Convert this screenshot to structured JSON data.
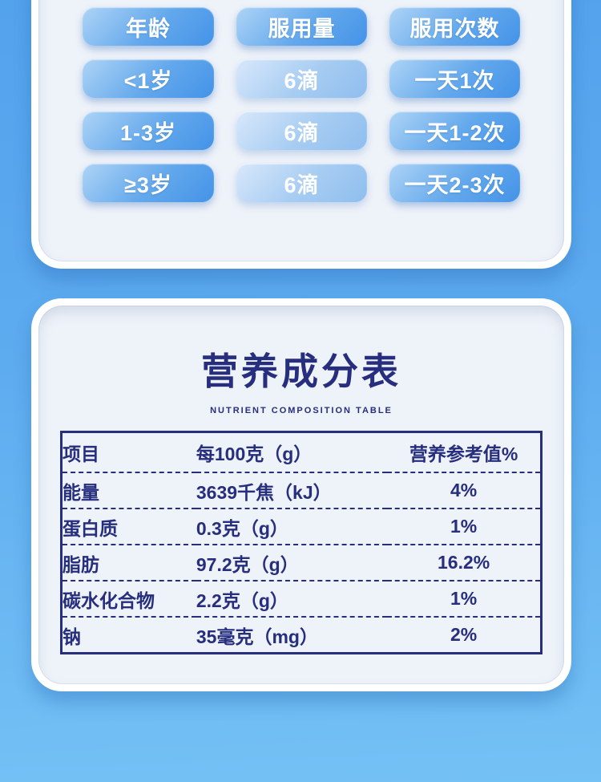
{
  "dosage_table": {
    "headers": [
      "年龄",
      "服用量",
      "服用次数"
    ],
    "rows": [
      [
        "<1岁",
        "6滴",
        "一天1次"
      ],
      [
        "1-3岁",
        "6滴",
        "一天1-2次"
      ],
      [
        "≥3岁",
        "6滴",
        "一天2-3次"
      ]
    ]
  },
  "nutrition": {
    "title": "营养成分表",
    "subtitle": "NUTRIENT COMPOSITION TABLE",
    "headers": [
      "项目",
      "每100克（g）",
      "营养参考值%"
    ],
    "rows": [
      {
        "item": "能量",
        "per100g": "3639千焦（kJ）",
        "nrv": "4%"
      },
      {
        "item": "蛋白质",
        "per100g": "0.3克（g）",
        "nrv": "1%"
      },
      {
        "item": "脂肪",
        "per100g": "97.2克（g）",
        "nrv": "16.2%"
      },
      {
        "item": "碳水化合物",
        "per100g": "2.2克（g）",
        "nrv": "1%"
      },
      {
        "item": "钠",
        "per100g": "35毫克（mg）",
        "nrv": "2%"
      }
    ]
  },
  "colors": {
    "background_top": "#53a2ec",
    "background_bottom": "#74c1f5",
    "card_frame": "#ffffff",
    "card_panel": "#eef2f9",
    "pill_dark_start": "#aed4f6",
    "pill_dark_end": "#4493e8",
    "pill_light_start": "#d8e8fb",
    "pill_light_end": "#8fbeee",
    "pill_text": "#ffffff",
    "navy_text": "#262e7d"
  }
}
